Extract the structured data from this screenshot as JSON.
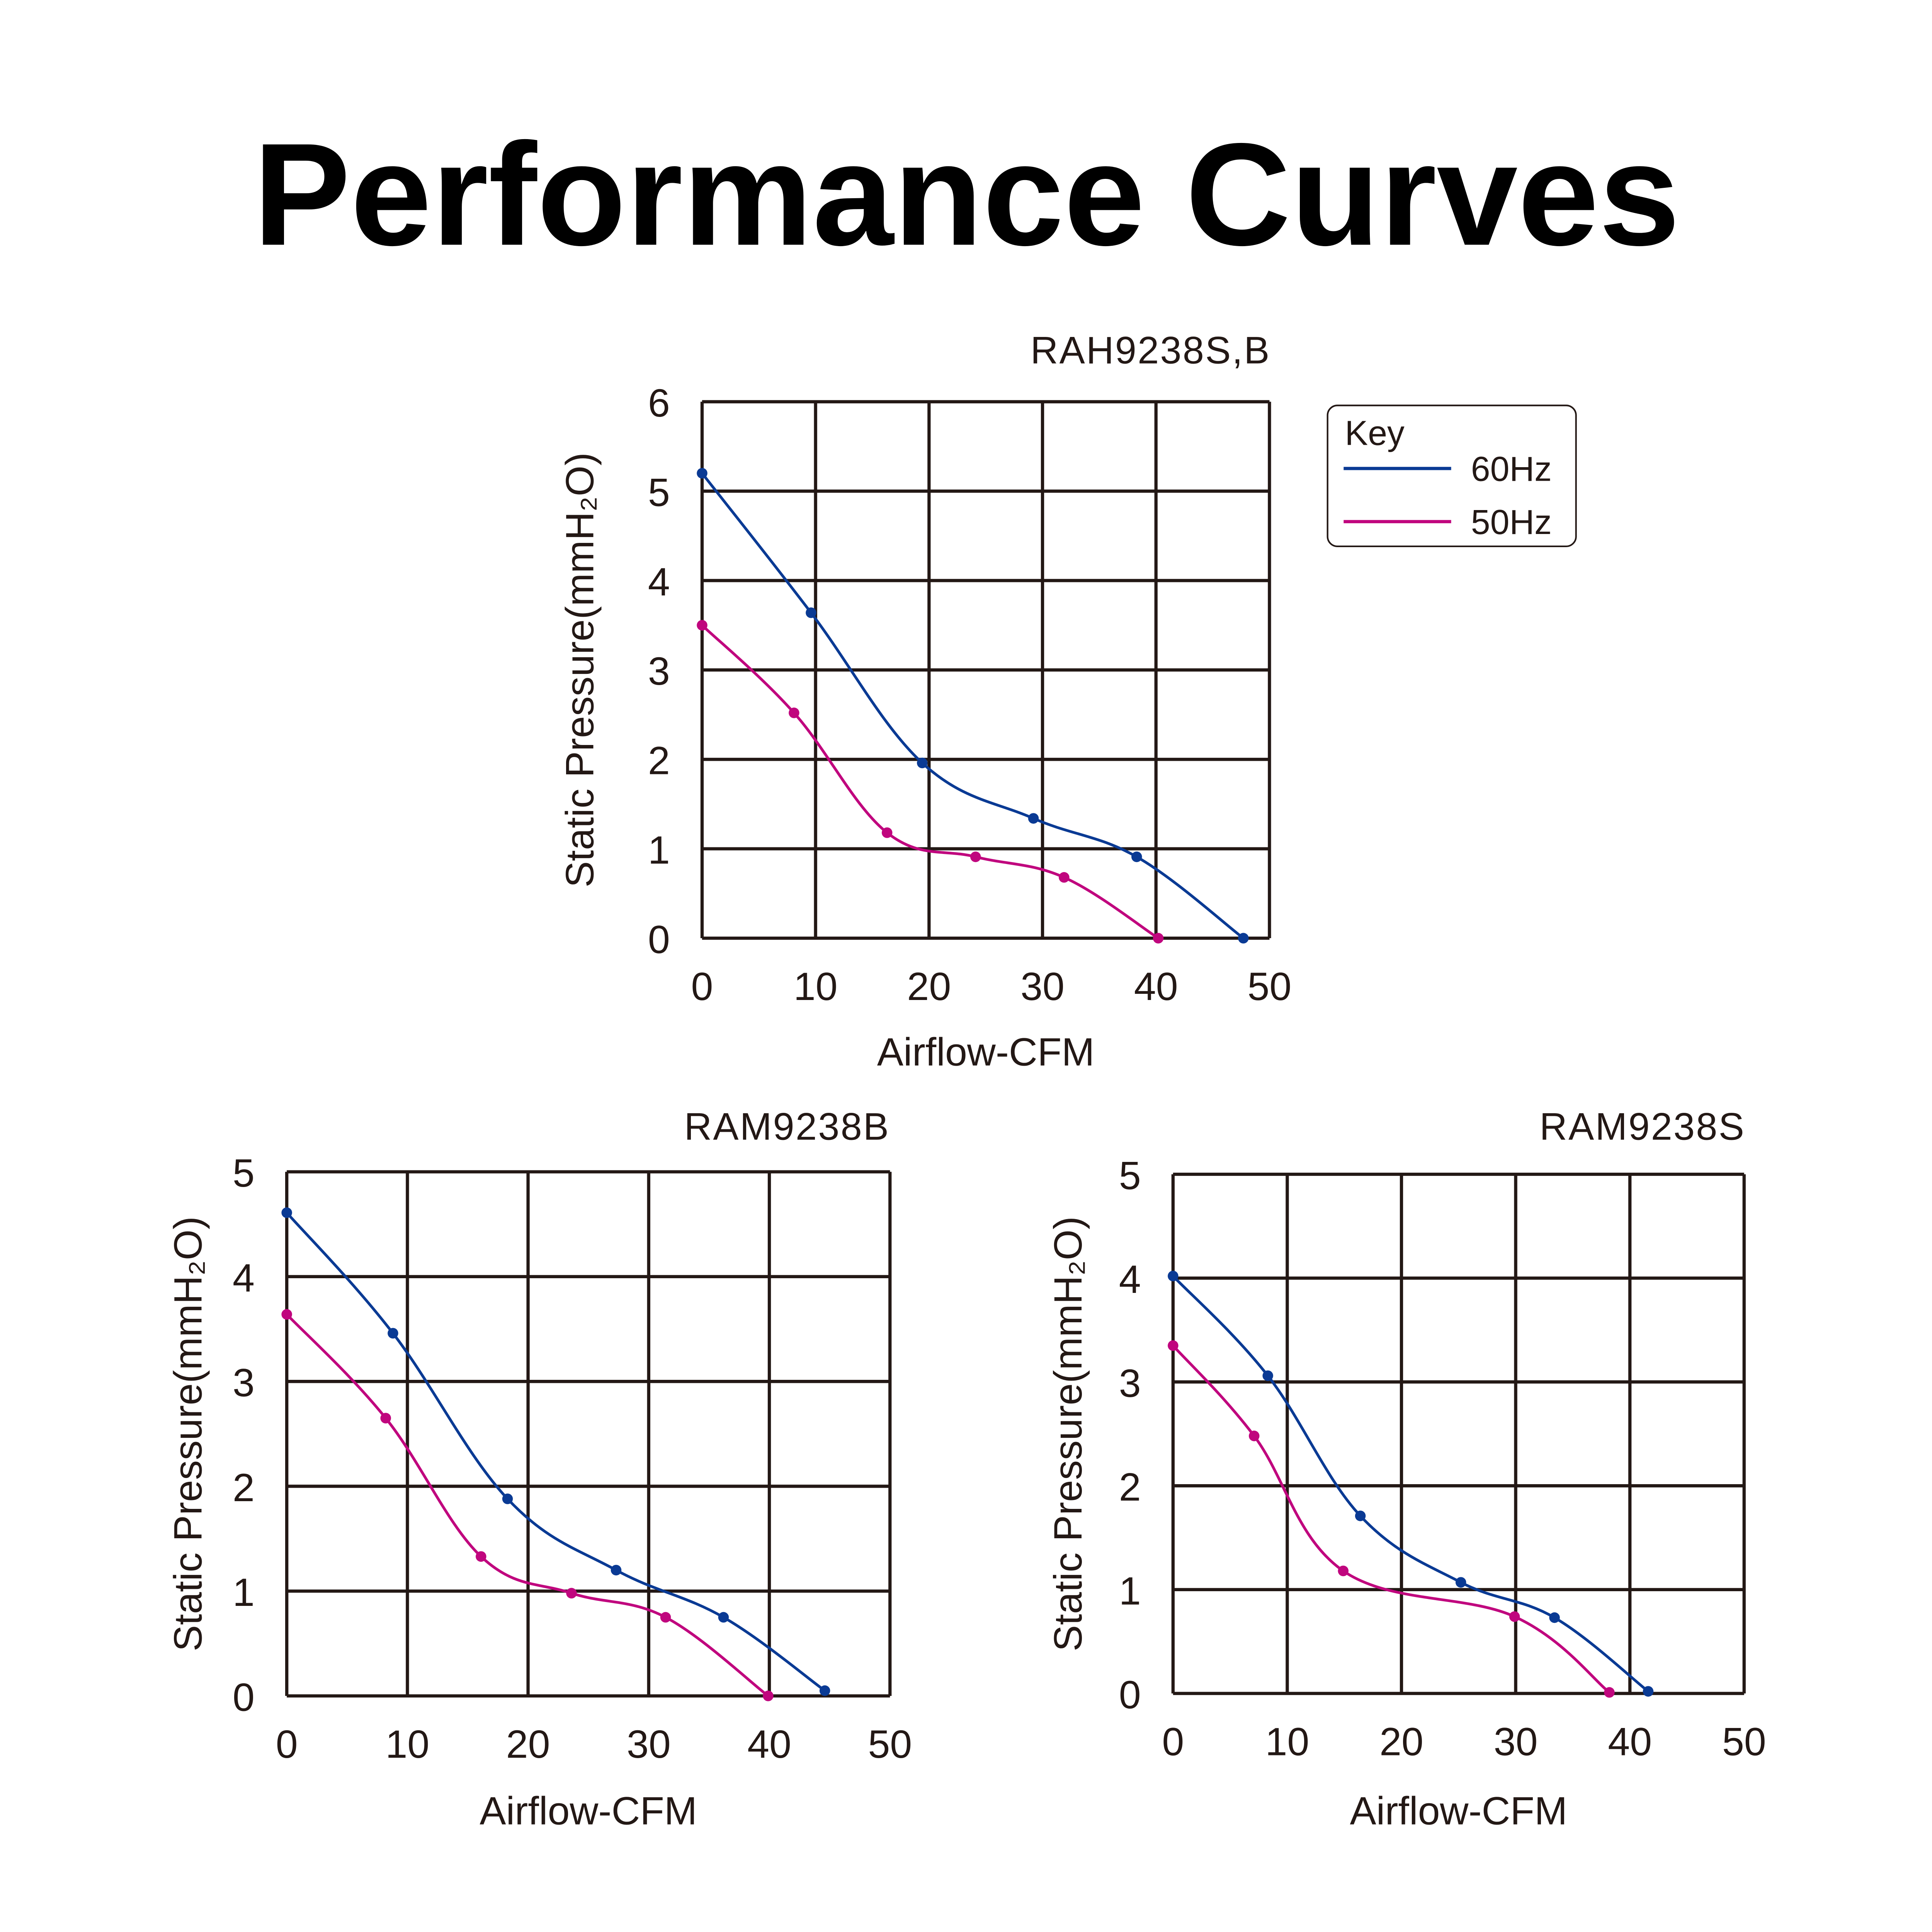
{
  "page_title": "Performance Curves",
  "colors": {
    "60Hz": "#0a3a94",
    "50Hz": "#c0067e",
    "grid": "#231815"
  },
  "chart_data": [
    {
      "type": "line",
      "title": "RAH9238S,B",
      "xlabel": "Airflow-CFM",
      "ylabel": "Static Pressure(mmH₂O)",
      "xlim": [
        0,
        50
      ],
      "ylim": [
        0,
        6
      ],
      "xticks": [
        "0",
        "10",
        "20",
        "30",
        "40",
        "50"
      ],
      "yticks": [
        "0",
        "1",
        "2",
        "3",
        "4",
        "5",
        "6"
      ],
      "grid": true,
      "legend": {
        "title": "Key",
        "placement": "right",
        "entries": [
          "60Hz",
          "50Hz"
        ]
      },
      "series": [
        {
          "name": "60Hz",
          "x": [
            0,
            9.6,
            19.4,
            29.2,
            38.3,
            47.7
          ],
          "y": [
            5.2,
            3.64,
            1.96,
            1.34,
            0.91,
            0
          ]
        },
        {
          "name": "50Hz",
          "x": [
            0,
            8.1,
            16.3,
            24.1,
            31.9,
            40.2
          ],
          "y": [
            3.5,
            2.52,
            1.18,
            0.91,
            0.68,
            0
          ]
        }
      ]
    },
    {
      "type": "line",
      "title": "RAM9238B",
      "xlabel": "Airflow-CFM",
      "ylabel": "Static Pressure(mmH₂O)",
      "xlim": [
        0,
        50
      ],
      "ylim": [
        0,
        5
      ],
      "xticks": [
        "0",
        "10",
        "20",
        "30",
        "40",
        "50"
      ],
      "yticks": [
        "0",
        "1",
        "2",
        "3",
        "4",
        "5"
      ],
      "grid": true,
      "series": [
        {
          "name": "60Hz",
          "x": [
            0,
            8.8,
            18.3,
            27.3,
            36.2,
            44.6
          ],
          "y": [
            4.61,
            3.46,
            1.88,
            1.2,
            0.75,
            0.05
          ]
        },
        {
          "name": "50Hz",
          "x": [
            0,
            8.2,
            16.1,
            23.6,
            31.4,
            39.9
          ],
          "y": [
            3.64,
            2.65,
            1.33,
            0.98,
            0.75,
            0
          ]
        }
      ]
    },
    {
      "type": "line",
      "title": "RAM9238S",
      "xlabel": "Airflow-CFM",
      "ylabel": "Static Pressure(mmH₂O)",
      "xlim": [
        0,
        50
      ],
      "ylim": [
        0,
        5
      ],
      "xticks": [
        "0",
        "10",
        "20",
        "30",
        "40",
        "50"
      ],
      "yticks": [
        "0",
        "1",
        "2",
        "3",
        "4",
        "5"
      ],
      "grid": true,
      "series": [
        {
          "name": "60Hz",
          "x": [
            0,
            8.3,
            16.4,
            25.2,
            33.4,
            41.6
          ],
          "y": [
            4.02,
            3.06,
            1.71,
            1.07,
            0.73,
            0.02
          ]
        },
        {
          "name": "50Hz",
          "x": [
            0,
            7.1,
            14.9,
            29.9,
            38.2
          ],
          "y": [
            3.35,
            2.48,
            1.18,
            0.74,
            0.01
          ]
        }
      ]
    }
  ]
}
